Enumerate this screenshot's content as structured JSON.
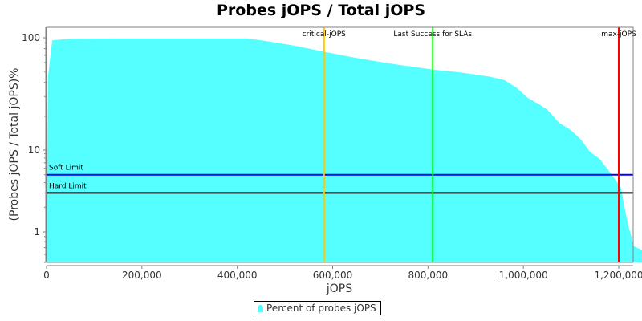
{
  "chart_data": {
    "type": "area",
    "title": "Probes jOPS / Total jOPS",
    "xlabel": "jOPS",
    "ylabel": "(Probes jOPS / Total jOPS)%",
    "yscale": "log",
    "xlim": [
      0,
      1250000
    ],
    "ylim": [
      0.5,
      130
    ],
    "grid": false,
    "legend_position": "bottom",
    "x_ticks": [
      {
        "value": 0,
        "label": "0"
      },
      {
        "value": 200000,
        "label": "200,000"
      },
      {
        "value": 400000,
        "label": "400,000"
      },
      {
        "value": 600000,
        "label": "600,000"
      },
      {
        "value": 800000,
        "label": "800,000"
      },
      {
        "value": 1000000,
        "label": "1,000,000"
      },
      {
        "value": 1200000,
        "label": "1,200,000"
      }
    ],
    "y_ticks": [
      {
        "value": 1,
        "label": "1"
      },
      {
        "value": 10,
        "label": "10"
      },
      {
        "value": 100,
        "label": "100"
      }
    ],
    "series": [
      {
        "name": "Percent of probes jOPS",
        "color": "#55ffff",
        "points": [
          [
            0,
            0.5
          ],
          [
            3000,
            45
          ],
          [
            12000,
            95
          ],
          [
            50000,
            98
          ],
          [
            150000,
            98.5
          ],
          [
            300000,
            98.5
          ],
          [
            420000,
            98.5
          ],
          [
            450000,
            95
          ],
          [
            520000,
            85
          ],
          [
            582000,
            75
          ],
          [
            650000,
            66
          ],
          [
            720000,
            59
          ],
          [
            810000,
            52
          ],
          [
            870000,
            49
          ],
          [
            930000,
            45
          ],
          [
            960000,
            42
          ],
          [
            985000,
            36
          ],
          [
            1010000,
            29
          ],
          [
            1030000,
            26
          ],
          [
            1050000,
            23
          ],
          [
            1075000,
            17.5
          ],
          [
            1100000,
            15
          ],
          [
            1120000,
            12.5
          ],
          [
            1140000,
            9.5
          ],
          [
            1160000,
            7.8
          ],
          [
            1180000,
            5.5
          ],
          [
            1195000,
            4.2
          ],
          [
            1205000,
            3.4
          ],
          [
            1212000,
            2.0
          ],
          [
            1220000,
            1.2
          ],
          [
            1232000,
            0.72
          ],
          [
            1250000,
            0.66
          ],
          [
            1250000,
            0.5
          ]
        ]
      }
    ],
    "horizontal_lines": [
      {
        "label": "Soft Limit",
        "value": 5.0,
        "color": "#0000ff"
      },
      {
        "label": "Hard Limit",
        "value": 3.0,
        "color": "#000000"
      }
    ],
    "vertical_lines": [
      {
        "label": "critical-jOPS",
        "value": 582000,
        "color": "#ffc800"
      },
      {
        "label": "Last Success for SLAs",
        "value": 810000,
        "color": "#00ff00"
      },
      {
        "label": "max-jOPS",
        "value": 1200000,
        "color": "#ff0000"
      }
    ]
  },
  "legend": {
    "label": "Percent of probes jOPS"
  }
}
